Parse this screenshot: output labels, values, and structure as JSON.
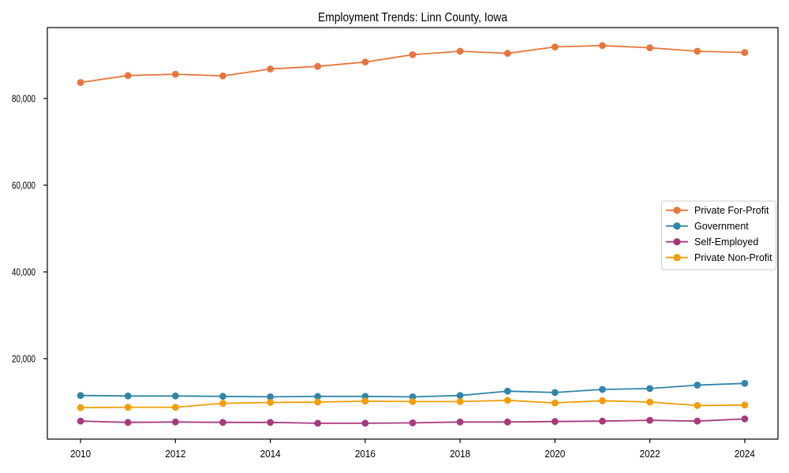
{
  "figure": {
    "background": "#ffffff",
    "border_color": "#000000"
  },
  "chart_data": {
    "type": "line",
    "title": "Employment Trends: Linn County, Iowa",
    "xlabel": "",
    "ylabel": "",
    "grid": false,
    "legend_position": "center right",
    "xlim": [
      2009.3,
      2024.7
    ],
    "ylim": [
      1450,
      96350
    ],
    "x": [
      2010,
      2011,
      2012,
      2013,
      2014,
      2015,
      2016,
      2017,
      2018,
      2019,
      2020,
      2021,
      2022,
      2023,
      2024
    ],
    "x_ticks": [
      {
        "value": 2010,
        "label": "2010"
      },
      {
        "value": 2012,
        "label": "2012"
      },
      {
        "value": 2014,
        "label": "2014"
      },
      {
        "value": 2016,
        "label": "2016"
      },
      {
        "value": 2018,
        "label": "2018"
      },
      {
        "value": 2020,
        "label": "2020"
      },
      {
        "value": 2022,
        "label": "2022"
      },
      {
        "value": 2024,
        "label": "2024"
      }
    ],
    "y_ticks": [
      {
        "value": 20000,
        "label": "20,000"
      },
      {
        "value": 40000,
        "label": "40,000"
      },
      {
        "value": 60000,
        "label": "60,000"
      },
      {
        "value": 80000,
        "label": "80,000"
      }
    ],
    "series": [
      {
        "name": "Private For-Profit",
        "color": "#e8763c",
        "marker": "circle",
        "values": [
          83700,
          85300,
          85600,
          85200,
          86800,
          87400,
          88400,
          90100,
          90900,
          90400,
          91900,
          92200,
          91700,
          90900,
          90600
        ]
      },
      {
        "name": "Government",
        "color": "#2e86a8",
        "marker": "circle",
        "values": [
          11500,
          11400,
          11400,
          11300,
          11200,
          11300,
          11300,
          11200,
          11500,
          12500,
          12200,
          12900,
          13100,
          13900,
          14300
        ]
      },
      {
        "name": "Self-Employed",
        "color": "#a73a7d",
        "marker": "circle",
        "values": [
          5600,
          5300,
          5400,
          5300,
          5300,
          5100,
          5100,
          5200,
          5400,
          5400,
          5500,
          5600,
          5800,
          5600,
          6100
        ]
      },
      {
        "name": "Private Non-Profit",
        "color": "#f19d06",
        "marker": "circle",
        "values": [
          8700,
          8800,
          8800,
          9700,
          9900,
          10000,
          10200,
          10100,
          10100,
          10400,
          9800,
          10300,
          10000,
          9200,
          9300
        ]
      }
    ]
  }
}
